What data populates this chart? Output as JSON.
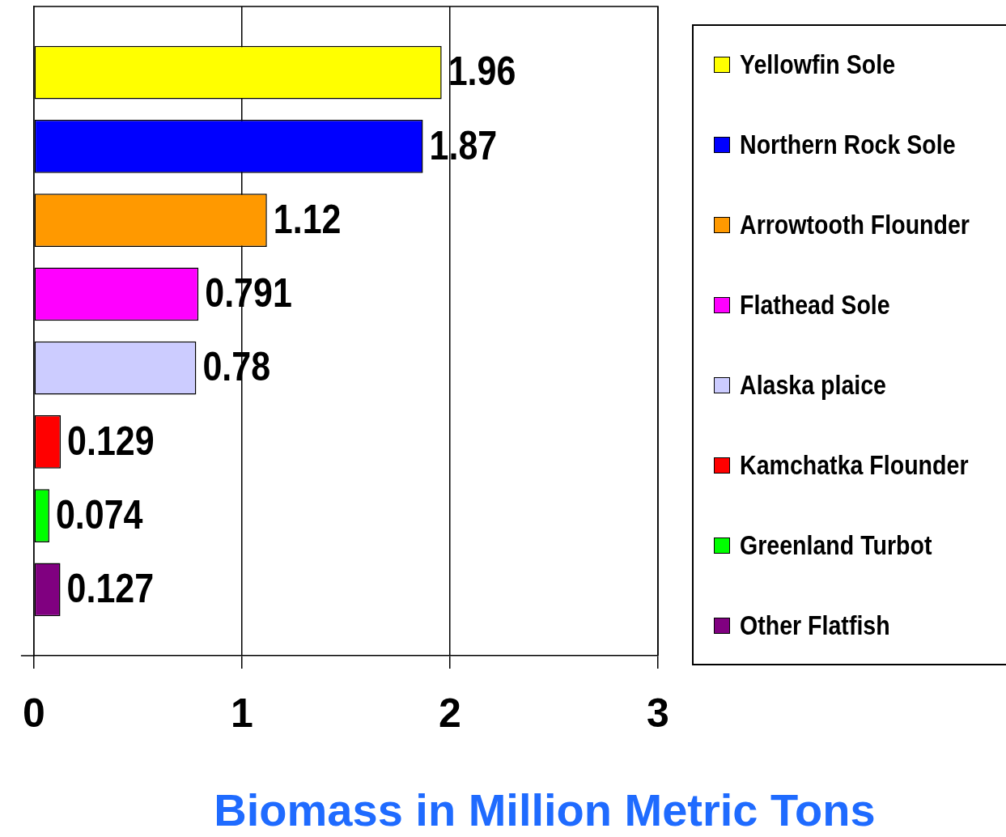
{
  "chart_data": {
    "type": "bar",
    "orientation": "horizontal",
    "xlabel": "Biomass in Million Metric Tons",
    "categories": [
      null
    ],
    "series": [
      {
        "name": "Yellowfin Sole",
        "color": "#ffff00",
        "values": [
          1.96
        ]
      },
      {
        "name": "Northern Rock Sole",
        "color": "#0000ff",
        "values": [
          1.87
        ]
      },
      {
        "name": "Arrowtooth Flounder",
        "color": "#ff9900",
        "values": [
          1.12
        ]
      },
      {
        "name": "Flathead Sole",
        "color": "#ff00ff",
        "values": [
          0.791
        ]
      },
      {
        "name": "Alaska plaice",
        "color": "#ccccff",
        "values": [
          0.78
        ]
      },
      {
        "name": "Kamchatka Flounder",
        "color": "#ff0000",
        "values": [
          0.129
        ]
      },
      {
        "name": "Greenland Turbot",
        "color": "#00ff00",
        "values": [
          0.074
        ]
      },
      {
        "name": "Other Flatfish",
        "color": "#800080",
        "values": [
          0.127
        ]
      }
    ],
    "xlim": [
      0,
      3
    ],
    "xticks": [
      0,
      1,
      2,
      3
    ],
    "grid": "x",
    "legend": "right",
    "data_labels": true
  }
}
